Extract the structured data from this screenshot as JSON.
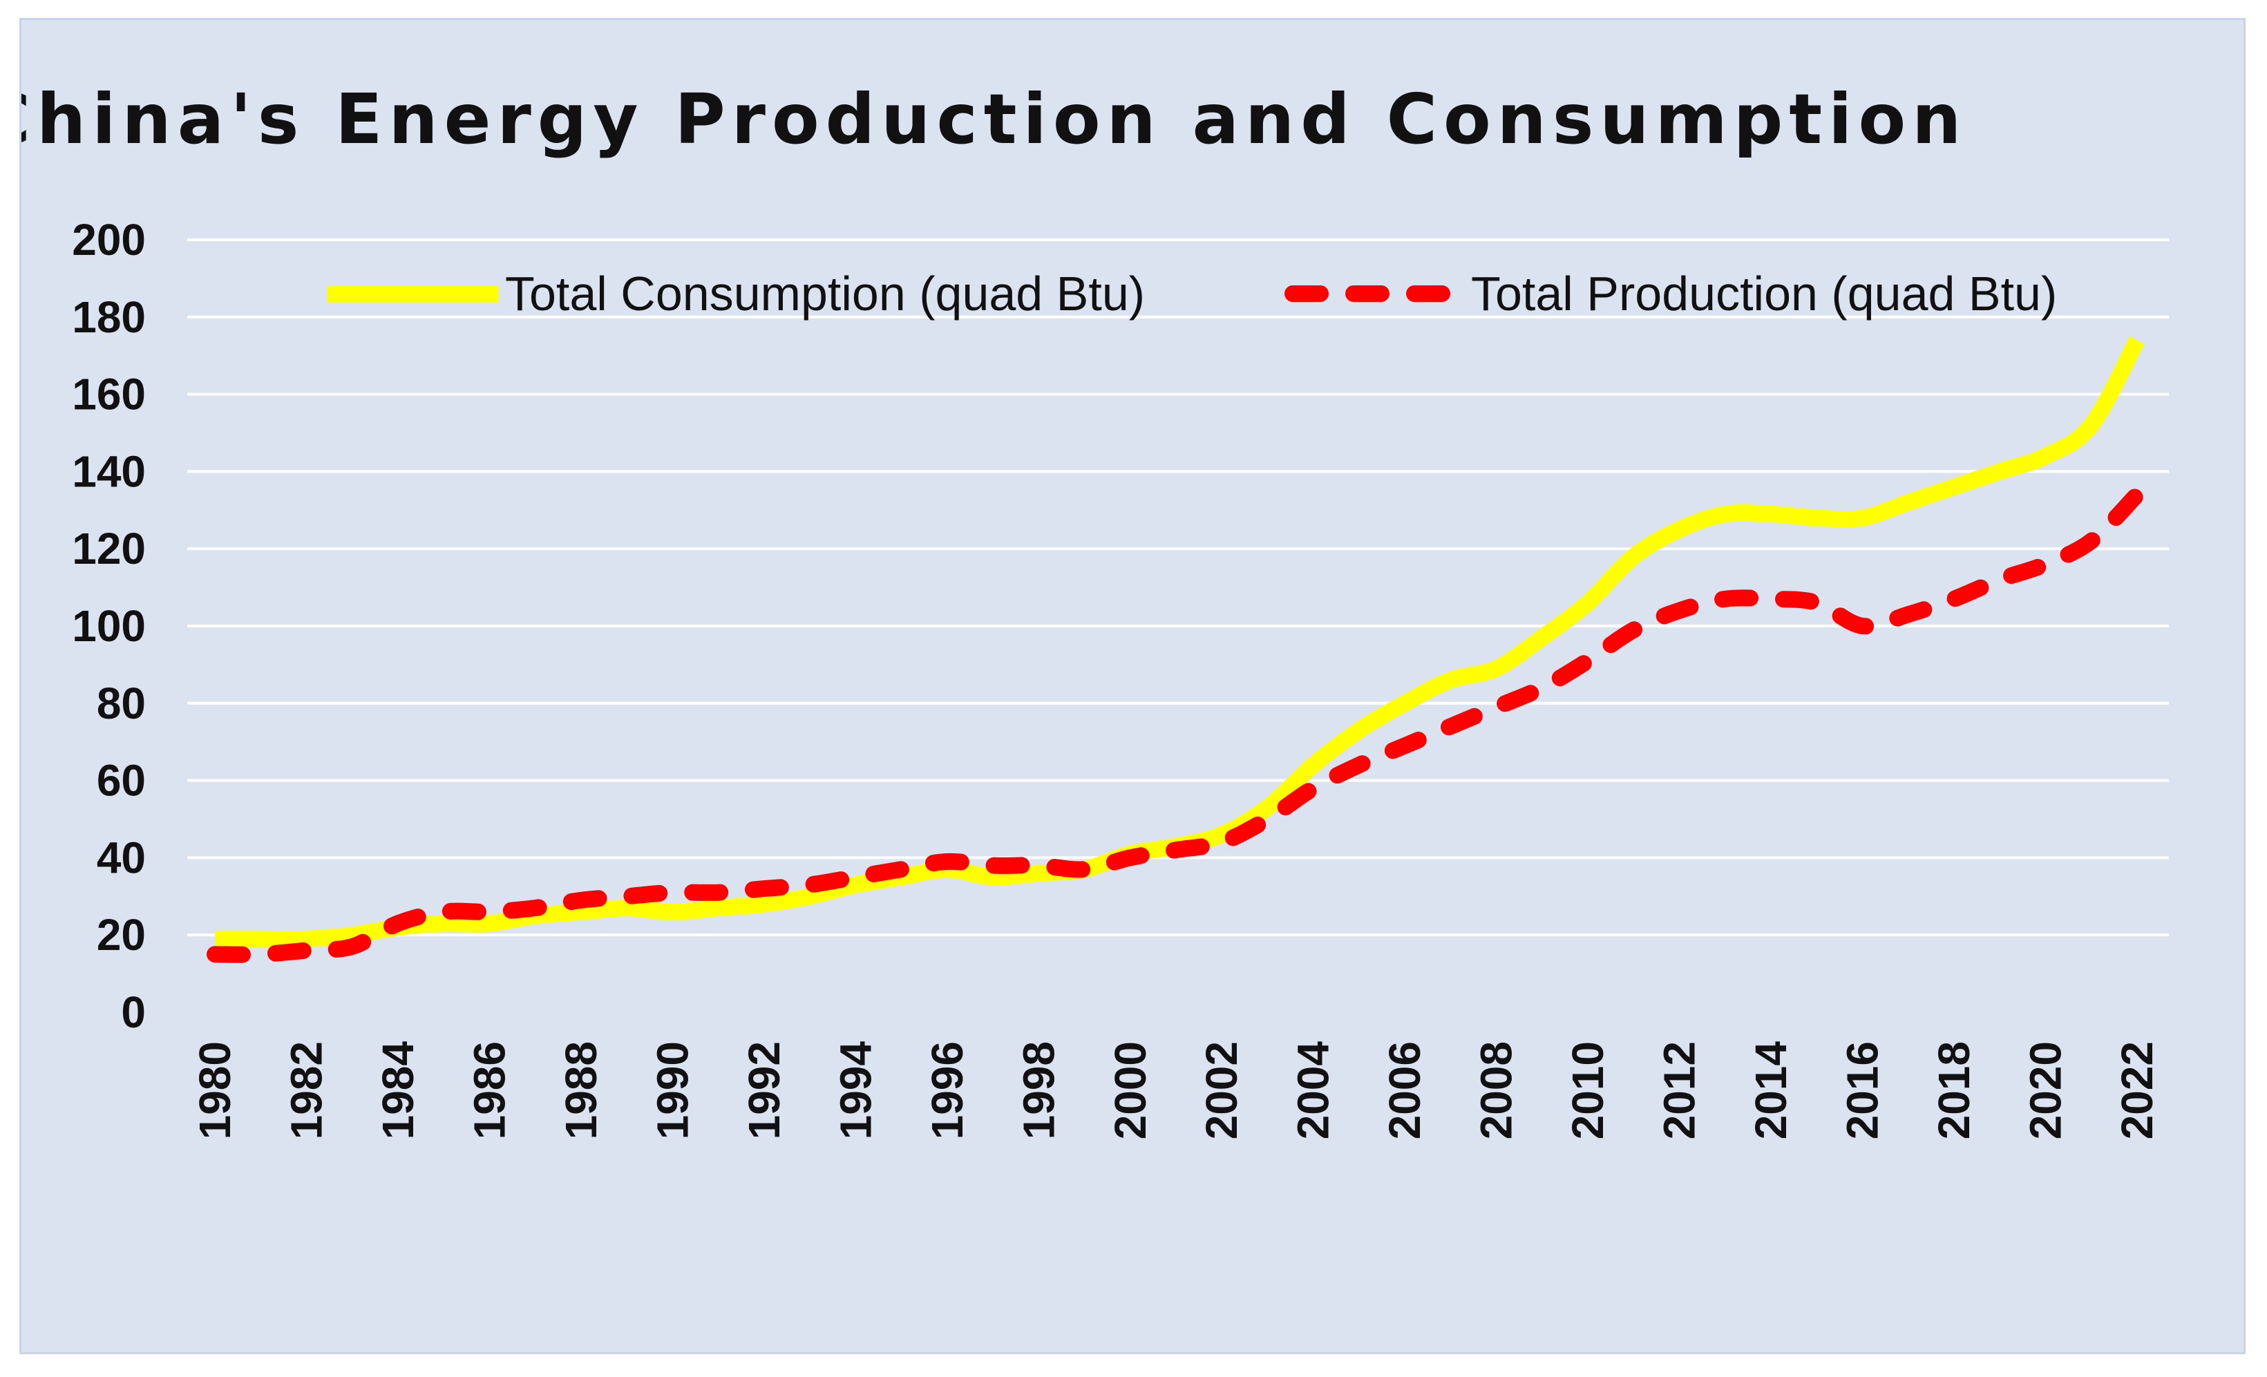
{
  "chart_data": {
    "type": "line",
    "title": "China's Energy Production and Consumption",
    "xlabel": "",
    "ylabel": "",
    "x": [
      1980,
      1981,
      1982,
      1983,
      1984,
      1985,
      1986,
      1987,
      1988,
      1989,
      1990,
      1991,
      1992,
      1993,
      1994,
      1995,
      1996,
      1997,
      1998,
      1999,
      2000,
      2001,
      2002,
      2003,
      2004,
      2005,
      2006,
      2007,
      2008,
      2009,
      2010,
      2011,
      2012,
      2013,
      2014,
      2015,
      2016,
      2017,
      2018,
      2019,
      2020,
      2021,
      2022
    ],
    "xticks": [
      "1980",
      "1982",
      "1984",
      "1986",
      "1988",
      "1990",
      "1992",
      "1994",
      "1996",
      "1998",
      "2000",
      "2002",
      "2004",
      "2006",
      "2008",
      "2010",
      "2012",
      "2014",
      "2016",
      "2018",
      "2020",
      "2022"
    ],
    "yticks": [
      "0",
      "20",
      "40",
      "60",
      "80",
      "100",
      "120",
      "140",
      "160",
      "180",
      "200"
    ],
    "ylim": [
      0,
      200
    ],
    "grid": true,
    "legend_position": "top",
    "series": [
      {
        "name": "Total Consumption (quad Btu)",
        "color": "#ffff00",
        "style": "solid",
        "values": [
          19,
          19,
          19,
          20,
          22,
          23,
          23,
          25,
          26,
          27,
          26,
          27,
          28,
          30,
          33,
          35,
          37,
          35,
          36,
          37,
          41,
          43,
          46,
          53,
          64,
          73,
          80,
          86,
          89,
          97,
          106,
          118,
          125,
          129,
          129,
          128,
          128,
          132,
          136,
          140,
          144,
          152,
          174
        ]
      },
      {
        "name": "Total Production (quad Btu)",
        "color": "#ff0000",
        "style": "dashed",
        "values": [
          15,
          15,
          16,
          17,
          23,
          26,
          26,
          27,
          29,
          30,
          31,
          31,
          32,
          33,
          35,
          37,
          39,
          38,
          38,
          37,
          40,
          42,
          44,
          50,
          58,
          64,
          69,
          74,
          79,
          84,
          91,
          99,
          104,
          107,
          107,
          106,
          100,
          103,
          107,
          112,
          116,
          122,
          134
        ]
      }
    ]
  }
}
